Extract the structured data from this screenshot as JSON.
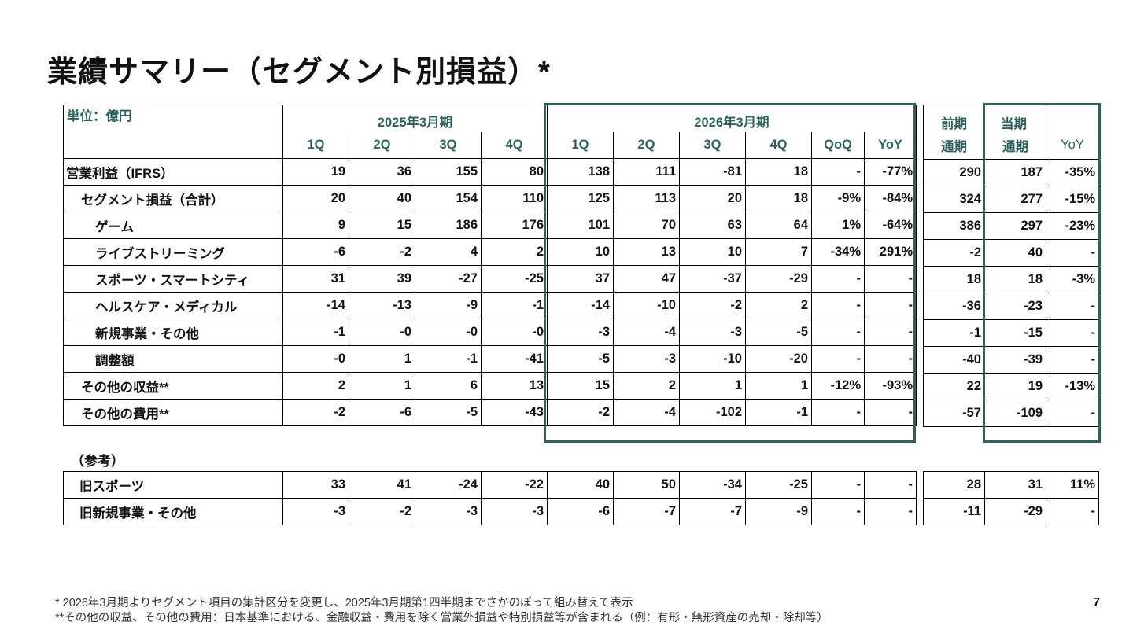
{
  "title": "業績サマリー（セグメント別損益）*",
  "unit_label": "単位：億円",
  "fy2025_label": "2025年3月期",
  "fy2026_label": "2026年3月期",
  "quarters": [
    "1Q",
    "2Q",
    "3Q",
    "4Q"
  ],
  "qoq_label": "QoQ",
  "yoy_label": "YoY",
  "prev_label": "前期",
  "curr_label": "当期",
  "full_year_label": "通期",
  "rows": [
    {
      "label": "営業利益（IFRS）",
      "indent": 0,
      "values": [
        "19",
        "36",
        "155",
        "80",
        "138",
        "111",
        "-81",
        "18",
        "-",
        "-77%",
        "290",
        "187",
        "-35%"
      ]
    },
    {
      "label": "セグメント損益（合計）",
      "indent": 1,
      "values": [
        "20",
        "40",
        "154",
        "110",
        "125",
        "113",
        "20",
        "18",
        "-9%",
        "-84%",
        "324",
        "277",
        "-15%"
      ]
    },
    {
      "label": "ゲーム",
      "indent": 2,
      "values": [
        "9",
        "15",
        "186",
        "176",
        "101",
        "70",
        "63",
        "64",
        "1%",
        "-64%",
        "386",
        "297",
        "-23%"
      ]
    },
    {
      "label": "ライブストリーミング",
      "indent": 2,
      "values": [
        "-6",
        "-2",
        "4",
        "2",
        "10",
        "13",
        "10",
        "7",
        "-34%",
        "291%",
        "-2",
        "40",
        "-"
      ]
    },
    {
      "label": "スポーツ・スマートシティ",
      "indent": 2,
      "values": [
        "31",
        "39",
        "-27",
        "-25",
        "37",
        "47",
        "-37",
        "-29",
        "-",
        "-",
        "18",
        "18",
        "-3%"
      ]
    },
    {
      "label": "ヘルスケア・メディカル",
      "indent": 2,
      "values": [
        "-14",
        "-13",
        "-9",
        "-1",
        "-14",
        "-10",
        "-2",
        "2",
        "-",
        "-",
        "-36",
        "-23",
        "-"
      ]
    },
    {
      "label": "新規事業・その他",
      "indent": 2,
      "values": [
        "-1",
        "-0",
        "-0",
        "-0",
        "-3",
        "-4",
        "-3",
        "-5",
        "-",
        "-",
        "-1",
        "-15",
        "-"
      ]
    },
    {
      "label": "調整額",
      "indent": 2,
      "values": [
        "-0",
        "1",
        "-1",
        "-41",
        "-5",
        "-3",
        "-10",
        "-20",
        "-",
        "-",
        "-40",
        "-39",
        "-"
      ]
    },
    {
      "label": "その他の収益**",
      "indent": 1,
      "values": [
        "2",
        "1",
        "6",
        "13",
        "15",
        "2",
        "1",
        "1",
        "-12%",
        "-93%",
        "22",
        "19",
        "-13%"
      ]
    },
    {
      "label": "その他の費用**",
      "indent": 1,
      "values": [
        "-2",
        "-6",
        "-5",
        "-43",
        "-2",
        "-4",
        "-102",
        "-1",
        "-",
        "-",
        "-57",
        "-109",
        "-"
      ]
    }
  ],
  "reference_label": "（参考）",
  "reference_rows": [
    {
      "label": "旧スポーツ",
      "values": [
        "33",
        "41",
        "-24",
        "-22",
        "40",
        "50",
        "-34",
        "-25",
        "-",
        "-",
        "28",
        "31",
        "11%"
      ]
    },
    {
      "label": "旧新規事業・その他",
      "values": [
        "-3",
        "-2",
        "-3",
        "-3",
        "-6",
        "-7",
        "-7",
        "-9",
        "-",
        "-",
        "-11",
        "-29",
        "-"
      ]
    }
  ],
  "footnotes": [
    "* 2026年3月期よりセグメント項目の集計区分を変更し、2025年3月期第1四半期までさかのぼって組み替えて表示",
    "**その他の収益、その他の費用：日本基準における、金融収益・費用を除く営業外損益や特別損益等が含まれる（例：有形・無形資産の売却・除却等）"
  ],
  "page_number": "7",
  "colors": {
    "accent": "#2c615e"
  }
}
